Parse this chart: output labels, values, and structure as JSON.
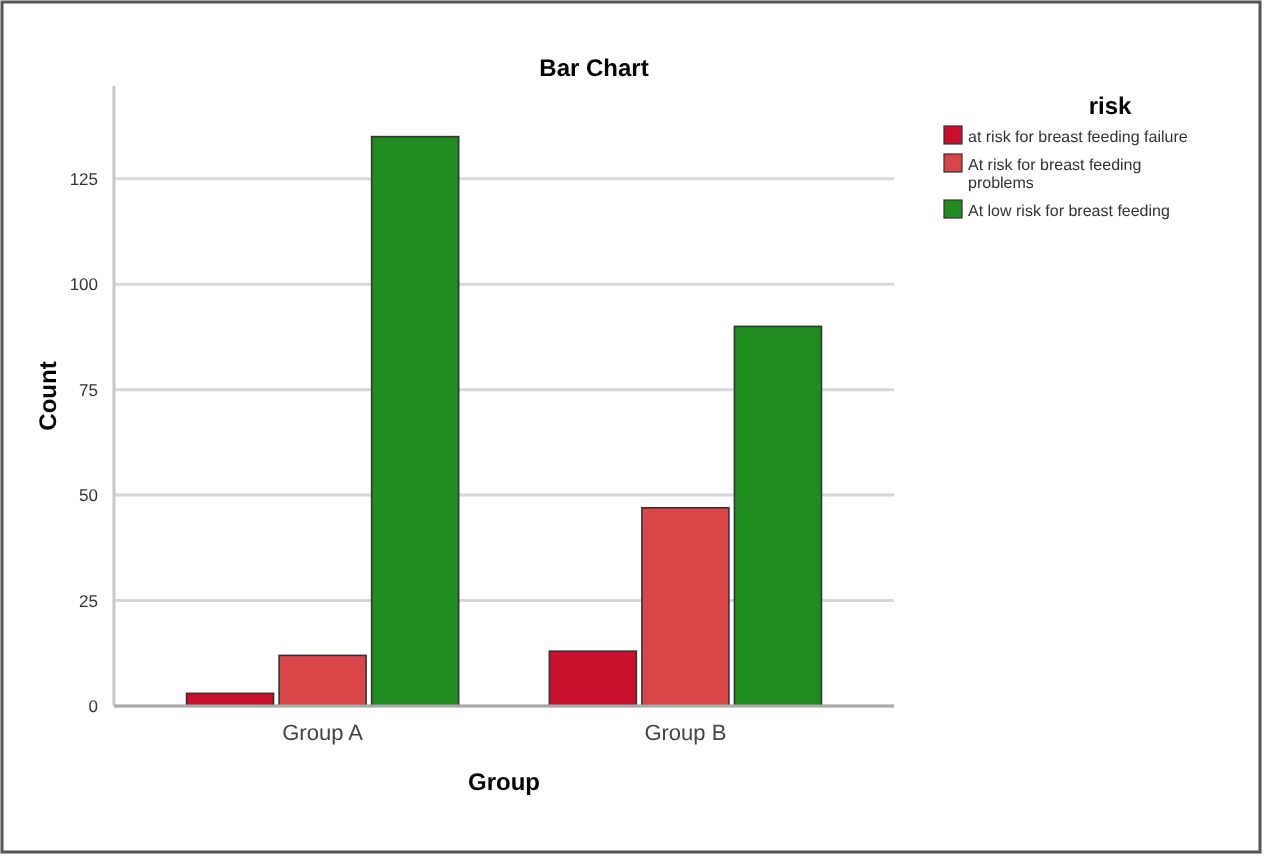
{
  "chart_data": {
    "type": "bar",
    "title": "Bar Chart",
    "xlabel": "Group",
    "ylabel": "Count",
    "legend_title": "risk",
    "categories": [
      "Group A",
      "Group B"
    ],
    "series": [
      {
        "name": "at risk for breast feeding failure",
        "color": "#c8102e",
        "values": [
          3,
          13
        ]
      },
      {
        "name": "At risk for breast feeding problems",
        "color": "#d9464a",
        "values": [
          12,
          47
        ]
      },
      {
        "name": "At low risk for breast feeding",
        "color": "#228b22",
        "values": [
          135,
          90
        ]
      }
    ],
    "ylim": [
      0,
      147
    ],
    "yticks": [
      0,
      25,
      50,
      75,
      100,
      125
    ],
    "grid": "y",
    "legend": "right"
  }
}
